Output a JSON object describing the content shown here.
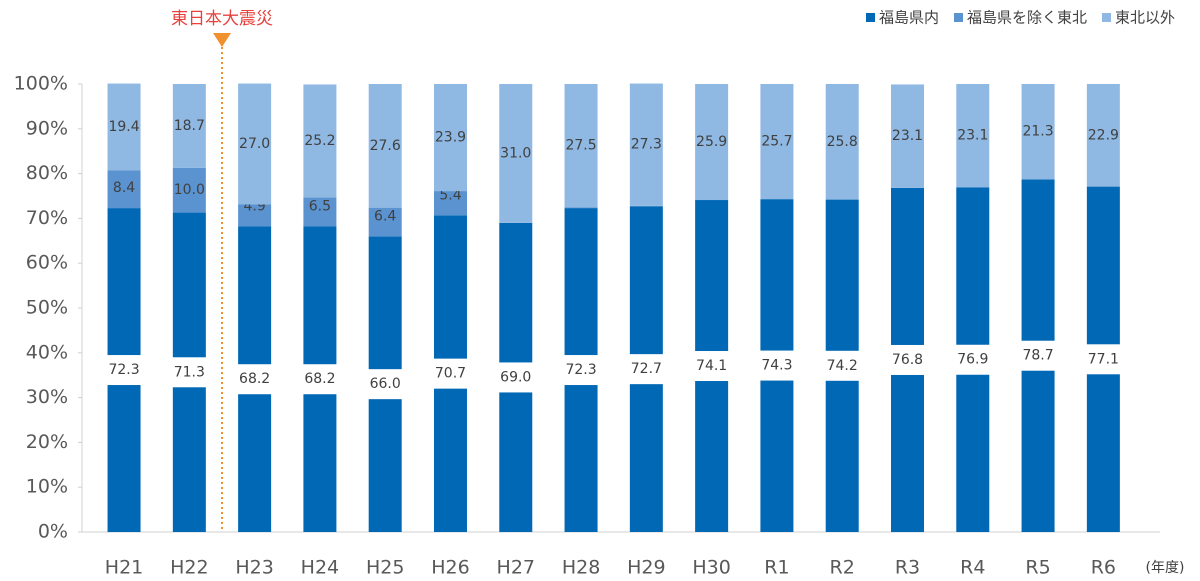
{
  "chart_data": {
    "type": "stacked_bar",
    "annotation": "東日本大震災",
    "x_unit_label": "(年度)",
    "categories": [
      "H21",
      "H22",
      "H23",
      "H24",
      "H25",
      "H26",
      "H27",
      "H28",
      "H29",
      "H30",
      "R1",
      "R2",
      "R3",
      "R4",
      "R5",
      "R6"
    ],
    "series": [
      {
        "name": "福島県内",
        "color": "#0068b4",
        "values": [
          72.3,
          71.3,
          68.2,
          68.2,
          66.0,
          70.7,
          69.0,
          72.3,
          72.7,
          74.1,
          74.3,
          74.2,
          76.8,
          76.9,
          78.7,
          77.1
        ],
        "value_labels": [
          "72.3",
          "71.3",
          "68.2",
          "68.2",
          "66.0",
          "70.7",
          "69.0",
          "72.3",
          "72.7",
          "74.1",
          "74.3",
          "74.2",
          "76.8",
          "76.9",
          "78.7",
          "77.1"
        ]
      },
      {
        "name": "福島県を除く東北",
        "color": "#5b93d0",
        "values": [
          8.4,
          10.0,
          4.9,
          6.5,
          6.4,
          5.4,
          0.0,
          0.2,
          0.1,
          0.0,
          0.0,
          0.0,
          0.0,
          0.0,
          0.0,
          0.0
        ],
        "value_labels": [
          "8.4",
          "10.0",
          "4.9",
          "6.5",
          "6.4",
          "5.4",
          "0.0",
          "0.2",
          "0.1",
          "0.0",
          "0.0",
          "0.0",
          "0.0",
          "0.0",
          "0.0",
          "0.0"
        ]
      },
      {
        "name": "東北以外",
        "color": "#8fb8e3",
        "values": [
          19.4,
          18.7,
          27.0,
          25.2,
          27.6,
          23.9,
          31.0,
          27.5,
          27.3,
          25.9,
          25.7,
          25.8,
          23.1,
          23.1,
          21.3,
          22.9
        ],
        "value_labels": [
          "19.4",
          "18.7",
          "27.0",
          "25.2",
          "27.6",
          "23.9",
          "31.0",
          "27.5",
          "27.3",
          "25.9",
          "25.7",
          "25.8",
          "23.1",
          "23.1",
          "21.3",
          "22.9"
        ]
      }
    ],
    "ylim": [
      0,
      100
    ],
    "yticks": [
      {
        "value": 0,
        "label": "0%"
      },
      {
        "value": 10,
        "label": "10%"
      },
      {
        "value": 20,
        "label": "20%"
      },
      {
        "value": 30,
        "label": "30%"
      },
      {
        "value": 40,
        "label": "40%"
      },
      {
        "value": 50,
        "label": "50%"
      },
      {
        "value": 60,
        "label": "60%"
      },
      {
        "value": 70,
        "label": "70%"
      },
      {
        "value": 80,
        "label": "80%"
      },
      {
        "value": 90,
        "label": "90%"
      },
      {
        "value": 100,
        "label": "100%"
      }
    ],
    "grid": false,
    "legend": "top-right"
  }
}
